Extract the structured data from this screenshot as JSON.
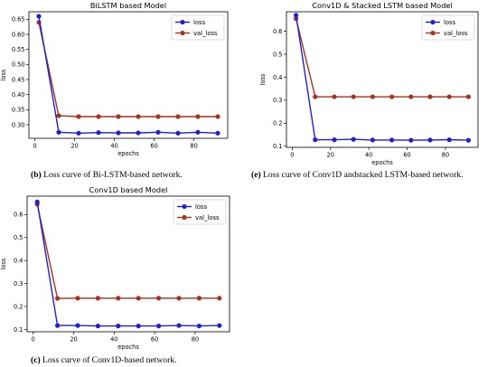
{
  "colors": {
    "loss": "#1f1fd6",
    "val_loss": "#a8321e",
    "axis": "#000000"
  },
  "chart_data": [
    {
      "type": "line",
      "title": "BiLSTM based Model",
      "xlabel": "epochs",
      "ylabel": "loss",
      "xlim": [
        -3,
        97
      ],
      "ylim": [
        0.255,
        0.675
      ],
      "xticks": [
        0,
        20,
        40,
        60,
        80
      ],
      "yticks": [
        0.3,
        0.35,
        0.4,
        0.45,
        0.5,
        0.55,
        0.6,
        0.65
      ],
      "ytick_labels": [
        "0.30",
        "0.35",
        "0.40",
        "0.45",
        "0.50",
        "0.55",
        "0.60",
        "0.65"
      ],
      "legend_position": "top-right",
      "x": [
        2,
        12,
        22,
        32,
        42,
        52,
        62,
        72,
        82,
        92
      ],
      "series": [
        {
          "name": "loss",
          "values": [
            0.66,
            0.275,
            0.272,
            0.274,
            0.273,
            0.273,
            0.275,
            0.272,
            0.275,
            0.272
          ]
        },
        {
          "name": "val_loss",
          "values": [
            0.64,
            0.33,
            0.327,
            0.327,
            0.327,
            0.327,
            0.327,
            0.327,
            0.327,
            0.327
          ]
        }
      ],
      "caption_label": "(b)",
      "caption_text": " Loss curve of Bi-LSTM-based network."
    },
    {
      "type": "line",
      "title": "Conv1D & Stacked LSTM based Model",
      "xlabel": "epochs",
      "ylabel": "loss",
      "xlim": [
        -3,
        97
      ],
      "ylim": [
        0.095,
        0.685
      ],
      "xticks": [
        0,
        20,
        40,
        60,
        80
      ],
      "yticks": [
        0.1,
        0.2,
        0.3,
        0.4,
        0.5,
        0.6
      ],
      "ytick_labels": [
        "0.1",
        "0.2",
        "0.3",
        "0.4",
        "0.5",
        "0.6"
      ],
      "legend_position": "top-right",
      "x": [
        2,
        12,
        22,
        32,
        42,
        52,
        62,
        72,
        82,
        92
      ],
      "series": [
        {
          "name": "loss",
          "values": [
            0.67,
            0.128,
            0.128,
            0.13,
            0.127,
            0.127,
            0.126,
            0.127,
            0.128,
            0.126
          ]
        },
        {
          "name": "val_loss",
          "values": [
            0.655,
            0.315,
            0.315,
            0.315,
            0.315,
            0.315,
            0.315,
            0.315,
            0.315,
            0.315
          ]
        }
      ],
      "caption_label": "(e)",
      "caption_text": " Loss curve of Conv1D andstacked LSTM-based network."
    },
    {
      "type": "line",
      "title": "Conv1D based Model",
      "xlabel": "epochs",
      "ylabel": "loss",
      "xlim": [
        -3,
        97
      ],
      "ylim": [
        0.09,
        0.68
      ],
      "xticks": [
        0,
        20,
        40,
        60,
        80
      ],
      "yticks": [
        0.1,
        0.2,
        0.3,
        0.4,
        0.5,
        0.6
      ],
      "ytick_labels": [
        "0.1",
        "0.2",
        "0.3",
        "0.4",
        "0.5",
        "0.6"
      ],
      "legend_position": "top-right",
      "x": [
        2,
        12,
        22,
        32,
        42,
        52,
        62,
        72,
        82,
        92
      ],
      "series": [
        {
          "name": "loss",
          "values": [
            0.655,
            0.117,
            0.117,
            0.115,
            0.115,
            0.115,
            0.115,
            0.117,
            0.115,
            0.117
          ]
        },
        {
          "name": "val_loss",
          "values": [
            0.645,
            0.235,
            0.236,
            0.236,
            0.236,
            0.236,
            0.236,
            0.236,
            0.236,
            0.236
          ]
        }
      ],
      "caption_label": "(c)",
      "caption_text": " Loss curve of Conv1D-based network."
    }
  ]
}
